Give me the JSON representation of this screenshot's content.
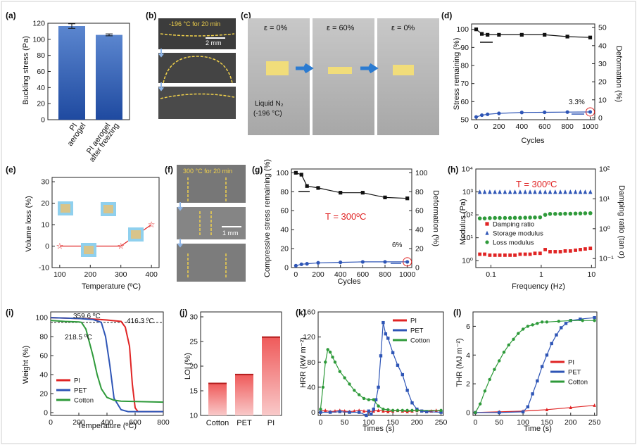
{
  "chart_data": [
    {
      "panel": "(a)",
      "type": "bar",
      "categories": [
        "PI\naerogel",
        "PI aerogel\nafter freezing"
      ],
      "values": [
        116.5,
        105.5
      ],
      "errors": [
        2.8,
        1.2
      ],
      "ylabel": "Buckling stress (Pa)",
      "ylim": [
        0,
        120
      ],
      "yticks": [
        0,
        20,
        40,
        60,
        80,
        100,
        120
      ]
    },
    {
      "panel": "(b)",
      "type": "image",
      "caption": "-196 °C for 20 min",
      "scalebar": "2 mm"
    },
    {
      "panel": "(c)",
      "type": "image",
      "labels": [
        "ε = 0%",
        "ε = 60%",
        "ε = 0%"
      ],
      "caption": "Liquid N₂\n(-196 °C)"
    },
    {
      "panel": "(d)",
      "type": "line",
      "x": [
        0,
        50,
        100,
        200,
        400,
        600,
        800,
        1000
      ],
      "series": [
        {
          "name": "Stress remaining",
          "axis": "left",
          "values": [
            100,
            97.5,
            97,
            97,
            97,
            97,
            96,
            95.5
          ]
        },
        {
          "name": "Deformation",
          "axis": "right",
          "values": [
            0.5,
            1.5,
            2,
            2.5,
            3,
            3.1,
            3.2,
            3.3
          ]
        }
      ],
      "xlabel": "Cycles",
      "ylabel": "Stress remaining (%)",
      "y2label": "Deformation (%)",
      "xlim": [
        0,
        1000
      ],
      "ylim": [
        50,
        100
      ],
      "y2lim": [
        0,
        50
      ],
      "xticks": [
        0,
        200,
        400,
        600,
        800,
        1000
      ],
      "yticks": [
        50,
        60,
        70,
        80,
        90,
        100
      ],
      "y2ticks": [
        0,
        10,
        20,
        30,
        40,
        50
      ],
      "annotation": "3.3%"
    },
    {
      "panel": "(e)",
      "type": "line",
      "x": [
        100,
        200,
        300,
        400
      ],
      "series": [
        {
          "name": "Volume loss",
          "values": [
            0,
            0,
            0,
            10
          ]
        }
      ],
      "xlabel": "Temperature (ºC)",
      "ylabel": "Volume loss (%)",
      "xlim": [
        100,
        400
      ],
      "ylim": [
        -10,
        30
      ],
      "xticks": [
        100,
        200,
        300,
        400
      ],
      "yticks": [
        -10,
        0,
        10,
        20,
        30
      ]
    },
    {
      "panel": "(f)",
      "type": "image",
      "caption": "300 °C for 20 min",
      "scalebar": "1 mm"
    },
    {
      "panel": "(g)",
      "type": "line",
      "x": [
        0,
        50,
        100,
        200,
        400,
        600,
        800,
        1000
      ],
      "series": [
        {
          "name": "Compressive stress remaining",
          "axis": "left",
          "values": [
            100,
            98,
            86,
            84,
            79,
            79,
            74,
            73
          ]
        },
        {
          "name": "Deformation",
          "axis": "right",
          "values": [
            2,
            3.5,
            4,
            5,
            5.5,
            6,
            6,
            6
          ]
        }
      ],
      "xlabel": "Cycles",
      "ylabel": "Compressive stress remaining (%)",
      "y2label": "Deformation (%)",
      "xlim": [
        0,
        1000
      ],
      "ylim": [
        0,
        100
      ],
      "y2lim": [
        0,
        100
      ],
      "xticks": [
        0,
        200,
        400,
        600,
        800,
        1000
      ],
      "yticks": [
        0,
        20,
        40,
        60,
        80,
        100
      ],
      "y2ticks": [
        0,
        20,
        40,
        60,
        80,
        100
      ],
      "title": "T = 300ºC",
      "annotation": "6%"
    },
    {
      "panel": "(h)",
      "type": "scatter",
      "x": [
        0.06,
        0.075,
        0.095,
        0.12,
        0.15,
        0.19,
        0.24,
        0.3,
        0.38,
        0.48,
        0.6,
        0.75,
        0.95,
        1.2,
        1.5,
        1.9,
        2.4,
        3.0,
        3.8,
        4.8,
        6.0,
        7.5,
        9.5
      ],
      "series": [
        {
          "name": "Damping ratio",
          "axis": "right",
          "values": [
            0.14,
            0.14,
            0.13,
            0.13,
            0.13,
            0.13,
            0.13,
            0.13,
            0.14,
            0.14,
            0.14,
            0.15,
            0.15,
            0.2,
            0.17,
            0.17,
            0.17,
            0.18,
            0.18,
            0.19,
            0.2,
            0.21,
            0.22
          ]
        },
        {
          "name": "Storage modulus",
          "axis": "left",
          "values": [
            1000,
            1000,
            1000,
            1000,
            1000,
            1000,
            1000,
            1000,
            1000,
            1000,
            1000,
            1000,
            1000,
            1000,
            1000,
            1000,
            1000,
            1000,
            1000,
            1000,
            1000,
            1000,
            1000
          ]
        },
        {
          "name": "Loss modulus",
          "axis": "left",
          "values": [
            70,
            70,
            72,
            73,
            73,
            73,
            73,
            74,
            74,
            75,
            76,
            77,
            78,
            100,
            110,
            110,
            110,
            112,
            112,
            114,
            115,
            117,
            118
          ]
        }
      ],
      "xlabel": "Frequency (Hz)",
      "ylabel": "Modulus (Pa)",
      "y2label": "Damping ratio (tan σ)",
      "xscale": "log",
      "yscale": "log",
      "xlim": [
        0.05,
        12
      ],
      "ylim": [
        0.5,
        10000
      ],
      "y2lim": [
        0.05,
        100
      ],
      "xtick_labels": [
        "0.1",
        "1",
        "10"
      ],
      "ytick_labels": [
        "10⁰",
        "10¹",
        "10²",
        "10³",
        "10⁴"
      ],
      "y2tick_labels": [
        "10⁻¹",
        "10⁰",
        "10¹",
        "10²"
      ],
      "title": "T = 300ºC"
    },
    {
      "panel": "(i)",
      "type": "line",
      "series": [
        {
          "name": "PI",
          "x": [
            0,
            100,
            200,
            300,
            400,
            500,
            530,
            560,
            580,
            600,
            620,
            800
          ],
          "values": [
            100,
            99.5,
            99,
            98.5,
            97.5,
            96,
            90,
            70,
            30,
            5,
            1,
            1
          ]
        },
        {
          "name": "PET",
          "x": [
            0,
            100,
            200,
            300,
            359.6,
            390,
            420,
            450,
            500,
            550,
            800
          ],
          "values": [
            100,
            99.5,
            99,
            98,
            95,
            80,
            50,
            15,
            3,
            1,
            1
          ]
        },
        {
          "name": "Cotton",
          "x": [
            0,
            100,
            200,
            218.5,
            250,
            300,
            330,
            360,
            400,
            450,
            500,
            800
          ],
          "values": [
            97,
            96,
            95.5,
            95,
            88,
            60,
            40,
            25,
            16,
            13,
            12,
            11
          ]
        }
      ],
      "xlabel": "Temperature (ºC)",
      "ylabel": "Weight (%)",
      "xlim": [
        0,
        800
      ],
      "ylim": [
        0,
        100
      ],
      "xticks": [
        0,
        200,
        400,
        600,
        800
      ],
      "yticks": [
        0,
        20,
        40,
        60,
        80,
        100
      ],
      "annotations": [
        "359.6 ºC",
        "416.3 ºC",
        "218.5 ºC"
      ]
    },
    {
      "panel": "(j)",
      "type": "bar",
      "categories": [
        "Cotton",
        "PET",
        "PI"
      ],
      "values": [
        16.5,
        18.3,
        25.9
      ],
      "ylabel": "LOI (%)",
      "ylim": [
        10,
        30
      ],
      "yticks": [
        10,
        15,
        20,
        25,
        30
      ]
    },
    {
      "panel": "(k)",
      "type": "line",
      "series": [
        {
          "name": "PI",
          "x": [
            0,
            10,
            20,
            30,
            40,
            50,
            60,
            70,
            80,
            90,
            100,
            110,
            120,
            130,
            140,
            150,
            160,
            170,
            180,
            190,
            200,
            210,
            220,
            230,
            240,
            250
          ],
          "values": [
            2,
            3,
            1,
            2,
            3,
            2,
            1,
            2,
            3,
            2,
            1,
            2,
            3,
            2,
            1,
            2,
            3,
            2,
            1,
            2,
            3,
            2,
            1,
            2,
            3,
            2
          ]
        },
        {
          "name": "PET",
          "x": [
            0,
            20,
            40,
            60,
            80,
            95,
            100,
            105,
            110,
            115,
            120,
            125,
            130,
            135,
            140,
            150,
            160,
            170,
            180,
            190,
            200,
            210,
            220,
            250
          ],
          "values": [
            0,
            0,
            1,
            0,
            0,
            -5,
            2,
            -3,
            5,
            20,
            40,
            90,
            143,
            125,
            118,
            95,
            75,
            60,
            35,
            15,
            5,
            2,
            1,
            0
          ]
        },
        {
          "name": "Cotton",
          "x": [
            0,
            5,
            10,
            15,
            20,
            25,
            30,
            40,
            50,
            60,
            70,
            80,
            90,
            100,
            110,
            120,
            130,
            140,
            150,
            160,
            170,
            180,
            190,
            200,
            250
          ],
          "values": [
            5,
            40,
            80,
            100,
            96,
            88,
            80,
            65,
            55,
            45,
            35,
            28,
            22,
            20,
            20,
            10,
            5,
            4,
            3,
            3,
            3,
            3,
            3,
            3,
            3
          ]
        }
      ],
      "xlabel": "Times (s)",
      "ylabel": "HRR (kW m⁻²)",
      "xlim": [
        0,
        250
      ],
      "ylim": [
        -5,
        160
      ],
      "xticks": [
        0,
        50,
        100,
        150,
        200,
        250
      ],
      "yticks": [
        0,
        40,
        80,
        120,
        160
      ]
    },
    {
      "panel": "(l)",
      "type": "line",
      "series": [
        {
          "name": "PI",
          "x": [
            0,
            50,
            100,
            150,
            200,
            250
          ],
          "values": [
            0,
            0.05,
            0.1,
            0.2,
            0.35,
            0.5
          ]
        },
        {
          "name": "PET",
          "x": [
            0,
            50,
            100,
            110,
            120,
            130,
            140,
            150,
            160,
            170,
            180,
            190,
            200,
            220,
            250
          ],
          "values": [
            0,
            0,
            0.05,
            0.4,
            1.3,
            2.2,
            3.2,
            4.0,
            4.8,
            5.4,
            5.9,
            6.2,
            6.4,
            6.5,
            6.6
          ]
        },
        {
          "name": "Cotton",
          "x": [
            0,
            10,
            20,
            30,
            40,
            50,
            60,
            70,
            80,
            90,
            100,
            110,
            120,
            130,
            140,
            150,
            175,
            200,
            225,
            250
          ],
          "values": [
            0,
            0.6,
            1.5,
            2.3,
            3.0,
            3.6,
            4.2,
            4.7,
            5.1,
            5.5,
            5.8,
            6.0,
            6.1,
            6.2,
            6.3,
            6.3,
            6.35,
            6.4,
            6.4,
            6.4
          ]
        }
      ],
      "xlabel": "Time (s)",
      "ylabel": "THR (MJ m⁻²)",
      "xlim": [
        0,
        250
      ],
      "ylim": [
        -0.2,
        7
      ],
      "xticks": [
        0,
        50,
        100,
        150,
        200,
        250
      ],
      "yticks": [
        0,
        2,
        4,
        6
      ]
    }
  ],
  "colors": {
    "bar_blue": "#3a67b3",
    "bar_red": "#e84c4c",
    "red": "#e02424",
    "blue": "#2e55b6",
    "green": "#2e9a3a",
    "black": "#111111"
  }
}
